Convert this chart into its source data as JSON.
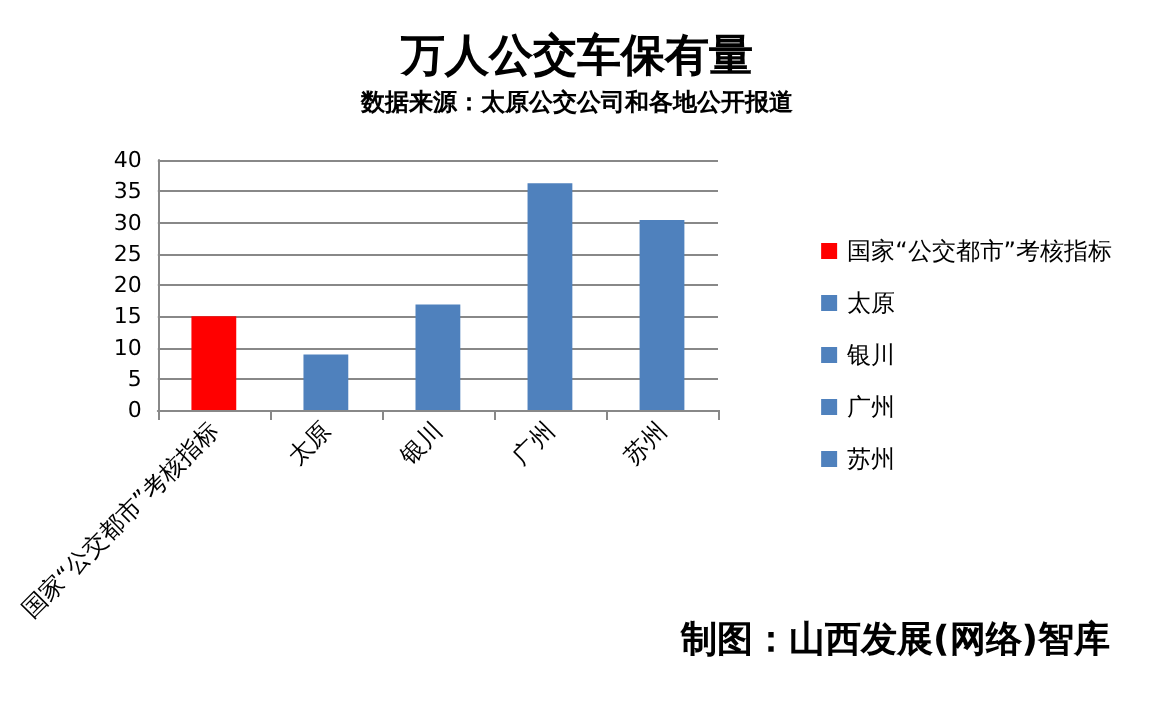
{
  "chart_data": {
    "type": "bar",
    "title": "万人公交车保有量",
    "subtitle": "数据来源：太原公交公司和各地公开报道",
    "categories": [
      "国家“公交都市”考核指标",
      "太原",
      "银川",
      "广州",
      "苏州"
    ],
    "series": [
      {
        "name": "国家“公交都市”考核指标",
        "color": "#ff0000",
        "values": [
          15,
          null,
          null,
          null,
          null
        ]
      },
      {
        "name": "太原",
        "color": "#4f81bd",
        "values": [
          null,
          8.9,
          null,
          null,
          null
        ]
      },
      {
        "name": "银川",
        "color": "#4f81bd",
        "values": [
          null,
          null,
          16.9,
          null,
          null
        ]
      },
      {
        "name": "广州",
        "color": "#4f81bd",
        "values": [
          null,
          null,
          null,
          36.3,
          null
        ]
      },
      {
        "name": "苏州",
        "color": "#4f81bd",
        "values": [
          null,
          null,
          null,
          null,
          30.4
        ]
      }
    ],
    "ylim": [
      0,
      40
    ],
    "yticks": [
      0,
      5,
      10,
      15,
      20,
      25,
      30,
      35,
      40
    ],
    "grid": "y",
    "legend": "right",
    "annotations": [
      "制图：山西发展(网络)智库"
    ]
  }
}
